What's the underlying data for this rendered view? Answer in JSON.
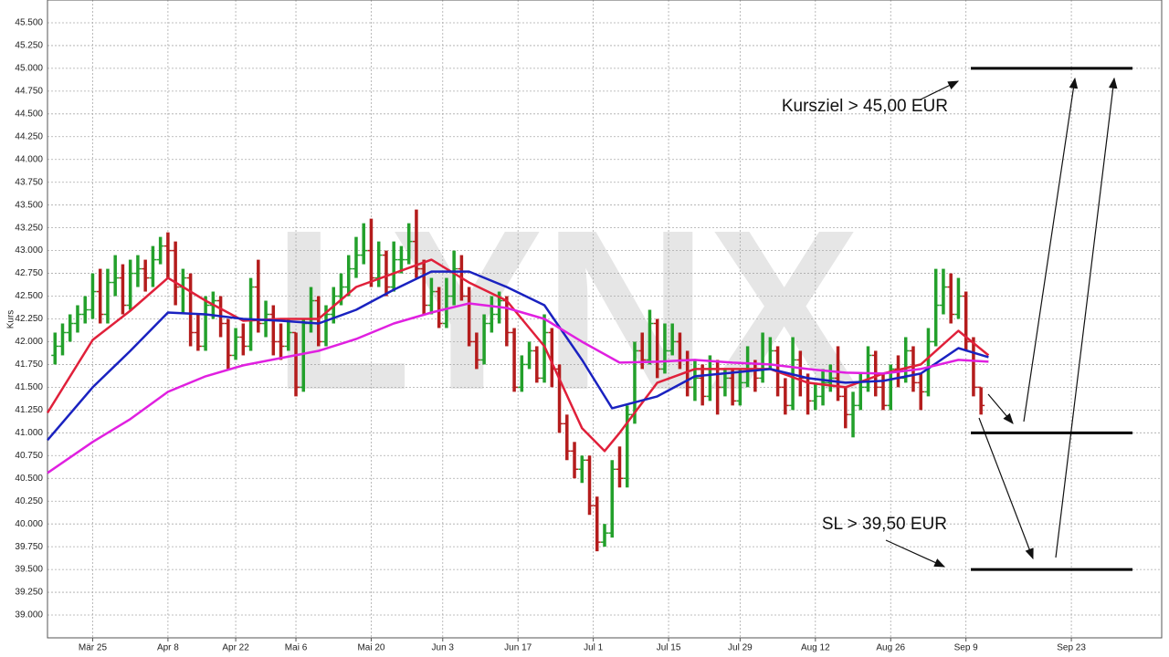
{
  "chart_data": {
    "type": "ohlc",
    "y_label": "Kurs",
    "watermark": "LYNX",
    "grid": true,
    "xlim": [
      0,
      148
    ],
    "ylim": [
      38.75,
      45.75
    ],
    "xticks": [
      {
        "value": 6,
        "label": "Mär 25"
      },
      {
        "value": 16,
        "label": "Apr 8"
      },
      {
        "value": 25,
        "label": "Apr 22"
      },
      {
        "value": 33,
        "label": "Mai 6"
      },
      {
        "value": 43,
        "label": "Mai 20"
      },
      {
        "value": 52.5,
        "label": "Jun 3"
      },
      {
        "value": 62.5,
        "label": "Jun 17"
      },
      {
        "value": 72.5,
        "label": "Jul 1"
      },
      {
        "value": 82.5,
        "label": "Jul 15"
      },
      {
        "value": 92,
        "label": "Jul 29"
      },
      {
        "value": 102,
        "label": "Aug 12"
      },
      {
        "value": 112,
        "label": "Aug 26"
      },
      {
        "value": 122,
        "label": "Sep 9"
      },
      {
        "value": 136,
        "label": "Sep 23"
      }
    ],
    "yticks": [
      {
        "value": 39,
        "label": "39.000"
      },
      {
        "value": 39.25,
        "label": "39.250"
      },
      {
        "value": 39.5,
        "label": "39.500"
      },
      {
        "value": 39.75,
        "label": "39.750"
      },
      {
        "value": 40,
        "label": "40.000"
      },
      {
        "value": 40.25,
        "label": "40.250"
      },
      {
        "value": 40.5,
        "label": "40.500"
      },
      {
        "value": 40.75,
        "label": "40.750"
      },
      {
        "value": 41,
        "label": "41.000"
      },
      {
        "value": 41.25,
        "label": "41.250"
      },
      {
        "value": 41.5,
        "label": "41.500"
      },
      {
        "value": 41.75,
        "label": "41.750"
      },
      {
        "value": 42,
        "label": "42.000"
      },
      {
        "value": 42.25,
        "label": "42.250"
      },
      {
        "value": 42.5,
        "label": "42.500"
      },
      {
        "value": 42.75,
        "label": "42.750"
      },
      {
        "value": 43,
        "label": "43.000"
      },
      {
        "value": 43.25,
        "label": "43.250"
      },
      {
        "value": 43.5,
        "label": "43.500"
      },
      {
        "value": 43.75,
        "label": "43.750"
      },
      {
        "value": 44,
        "label": "44.000"
      },
      {
        "value": 44.25,
        "label": "44.250"
      },
      {
        "value": 44.5,
        "label": "44.500"
      },
      {
        "value": 44.75,
        "label": "44.750"
      },
      {
        "value": 45,
        "label": "45.000"
      },
      {
        "value": 45.25,
        "label": "45.250"
      },
      {
        "value": 45.5,
        "label": "45.500"
      }
    ],
    "up_color": "#23a02b",
    "down_color": "#b41c1c",
    "x": [
      1,
      2,
      3,
      4,
      5,
      6,
      7,
      8,
      9,
      10,
      11,
      12,
      13,
      14,
      15,
      16,
      17,
      18,
      19,
      20,
      21,
      22,
      23,
      24,
      25,
      26,
      27,
      28,
      29,
      30,
      31,
      32,
      33,
      34,
      35,
      36,
      37,
      38,
      39,
      40,
      41,
      42,
      43,
      44,
      45,
      46,
      47,
      48,
      49,
      50,
      51,
      52,
      53,
      54,
      55,
      56,
      57,
      58,
      59,
      60,
      61,
      62,
      63,
      64,
      65,
      66,
      67,
      68,
      69,
      70,
      71,
      72,
      73,
      74,
      75,
      76,
      77,
      78,
      79,
      80,
      81,
      82,
      83,
      84,
      85,
      86,
      87,
      88,
      89,
      90,
      91,
      92,
      93,
      94,
      95,
      96,
      97,
      98,
      99,
      100,
      101,
      102,
      103,
      104,
      105,
      106,
      107,
      108,
      109,
      110,
      111,
      112,
      113,
      114,
      115,
      116,
      117,
      118,
      119,
      120,
      121,
      122,
      123,
      124
    ],
    "open": [
      41.85,
      41.95,
      42.1,
      42.2,
      42.3,
      42.35,
      42.55,
      42.3,
      42.65,
      42.7,
      42.4,
      42.75,
      42.8,
      42.7,
      42.9,
      43.05,
      43.0,
      42.6,
      42.7,
      42.1,
      41.95,
      42.4,
      42.45,
      42.2,
      41.85,
      42.05,
      41.95,
      42.6,
      42.2,
      42.3,
      42.0,
      41.95,
      42.1,
      41.5,
      42.2,
      42.45,
      42.0,
      42.3,
      42.5,
      42.6,
      42.8,
      42.95,
      43.0,
      42.7,
      42.95,
      42.6,
      42.9,
      42.9,
      43.1,
      42.8,
      42.4,
      42.55,
      42.2,
      42.5,
      42.8,
      42.5,
      42.0,
      41.8,
      42.2,
      42.3,
      42.45,
      42.1,
      41.5,
      41.75,
      41.9,
      41.6,
      42.1,
      41.7,
      41.1,
      40.8,
      40.6,
      40.7,
      40.2,
      39.8,
      39.9,
      40.6,
      40.5,
      41.2,
      41.9,
      41.8,
      42.2,
      41.7,
      41.9,
      42.0,
      41.8,
      41.5,
      41.6,
      41.4,
      41.7,
      41.5,
      41.6,
      41.35,
      41.55,
      41.7,
      41.6,
      41.75,
      41.9,
      41.5,
      41.3,
      41.8,
      41.6,
      41.35,
      41.4,
      41.55,
      41.6,
      41.4,
      41.2,
      41.3,
      41.5,
      41.85,
      41.5,
      41.3,
      41.7,
      41.6,
      41.9,
      41.55,
      41.45,
      42.0,
      42.4,
      42.6,
      42.3,
      42.5,
      42.0,
      41.5
    ],
    "high": [
      42.1,
      42.2,
      42.3,
      42.4,
      42.5,
      42.75,
      42.8,
      42.8,
      42.95,
      42.85,
      42.9,
      42.95,
      42.9,
      43.05,
      43.15,
      43.2,
      43.1,
      42.8,
      42.75,
      42.3,
      42.5,
      42.55,
      42.5,
      42.25,
      42.15,
      42.2,
      42.7,
      42.9,
      42.45,
      42.4,
      42.2,
      42.25,
      42.1,
      42.25,
      42.6,
      42.5,
      42.4,
      42.6,
      42.75,
      42.95,
      43.15,
      43.3,
      43.35,
      43.1,
      43.0,
      43.1,
      43.05,
      43.3,
      43.45,
      42.9,
      42.7,
      42.6,
      42.7,
      43.0,
      42.95,
      42.6,
      42.1,
      42.3,
      42.5,
      42.55,
      42.5,
      42.15,
      41.85,
      42.0,
      41.95,
      42.3,
      42.15,
      41.75,
      41.2,
      40.9,
      40.75,
      40.75,
      40.3,
      40.0,
      40.7,
      40.85,
      41.3,
      42.0,
      42.1,
      42.35,
      42.25,
      42.2,
      42.2,
      42.1,
      41.9,
      41.8,
      41.75,
      41.85,
      41.8,
      41.7,
      41.7,
      41.7,
      41.95,
      41.8,
      42.1,
      42.05,
      41.95,
      41.6,
      42.05,
      41.9,
      41.65,
      41.55,
      41.7,
      41.75,
      41.95,
      41.5,
      41.45,
      41.65,
      41.95,
      41.9,
      41.65,
      41.75,
      41.85,
      42.05,
      41.95,
      41.65,
      42.15,
      42.8,
      42.8,
      42.75,
      42.7,
      42.55,
      42.05,
      41.5
    ],
    "low": [
      41.75,
      41.85,
      42.0,
      42.1,
      42.2,
      42.25,
      42.2,
      42.2,
      42.5,
      42.3,
      42.35,
      42.6,
      42.55,
      42.6,
      42.85,
      42.7,
      42.4,
      42.3,
      41.95,
      41.9,
      41.9,
      42.25,
      42.05,
      41.7,
      41.8,
      41.85,
      41.9,
      42.1,
      42.05,
      41.85,
      41.8,
      41.9,
      41.4,
      41.45,
      42.1,
      41.95,
      41.95,
      42.2,
      42.4,
      42.5,
      42.7,
      42.85,
      42.6,
      42.6,
      42.5,
      42.55,
      42.75,
      42.85,
      42.7,
      42.3,
      42.3,
      42.15,
      42.15,
      42.4,
      42.45,
      41.95,
      41.7,
      41.75,
      42.1,
      42.2,
      41.95,
      41.45,
      41.45,
      41.7,
      41.55,
      41.55,
      41.5,
      41.0,
      40.7,
      40.5,
      40.45,
      40.1,
      39.7,
      39.75,
      39.85,
      40.4,
      40.4,
      41.1,
      41.7,
      41.75,
      41.6,
      41.65,
      41.85,
      41.7,
      41.4,
      41.35,
      41.3,
      41.35,
      41.2,
      41.4,
      41.3,
      41.3,
      41.5,
      41.45,
      41.55,
      41.7,
      41.4,
      41.2,
      41.25,
      41.4,
      41.2,
      41.25,
      41.3,
      41.45,
      41.35,
      41.05,
      40.95,
      41.25,
      41.45,
      41.4,
      41.25,
      41.25,
      41.5,
      41.55,
      41.45,
      41.25,
      41.4,
      41.95,
      42.3,
      42.2,
      42.25,
      41.9,
      41.4,
      41.2
    ],
    "close": [
      41.95,
      42.1,
      42.2,
      42.3,
      42.35,
      42.55,
      42.3,
      42.65,
      42.7,
      42.4,
      42.75,
      42.8,
      42.7,
      42.9,
      43.05,
      43.0,
      42.6,
      42.7,
      42.1,
      41.95,
      42.4,
      42.45,
      42.2,
      41.85,
      42.05,
      41.95,
      42.6,
      42.2,
      42.3,
      42.0,
      41.95,
      42.1,
      41.5,
      42.2,
      42.45,
      42.0,
      42.3,
      42.5,
      42.6,
      42.8,
      42.95,
      43.0,
      42.7,
      42.95,
      42.6,
      42.9,
      42.9,
      43.1,
      42.8,
      42.4,
      42.55,
      42.2,
      42.5,
      42.8,
      42.5,
      42.0,
      41.8,
      42.2,
      42.3,
      42.45,
      42.1,
      41.5,
      41.75,
      41.9,
      41.6,
      42.1,
      41.7,
      41.1,
      40.8,
      40.6,
      40.7,
      40.2,
      39.8,
      39.9,
      40.6,
      40.5,
      41.2,
      41.9,
      41.8,
      42.2,
      41.7,
      41.9,
      42.0,
      41.8,
      41.5,
      41.6,
      41.4,
      41.7,
      41.5,
      41.6,
      41.35,
      41.55,
      41.7,
      41.6,
      41.75,
      41.9,
      41.5,
      41.3,
      41.8,
      41.6,
      41.35,
      41.4,
      41.55,
      41.6,
      41.4,
      41.2,
      41.3,
      41.5,
      41.85,
      41.5,
      41.3,
      41.7,
      41.6,
      41.9,
      41.55,
      41.45,
      42.0,
      42.4,
      42.6,
      42.3,
      42.5,
      42.0,
      41.5,
      41.3
    ],
    "lines": [
      {
        "color": "#e0203a",
        "x": [
          0,
          6,
          11,
          16,
          21,
          26,
          31,
          36,
          41,
          46,
          51,
          56,
          61,
          66,
          71,
          74,
          76,
          81,
          86,
          91,
          96,
          101,
          106,
          111,
          116,
          121,
          125
        ],
        "values": [
          41.22,
          42.02,
          42.34,
          42.7,
          42.45,
          42.23,
          42.25,
          42.25,
          42.6,
          42.75,
          42.9,
          42.65,
          42.45,
          41.95,
          41.05,
          40.8,
          41.0,
          41.55,
          41.7,
          41.7,
          41.7,
          41.55,
          41.5,
          41.65,
          41.75,
          42.12,
          41.85
        ]
      },
      {
        "color": "#1a22c0",
        "x": [
          0,
          6,
          11,
          16,
          21,
          26,
          31,
          36,
          41,
          46,
          51,
          56,
          61,
          66,
          71,
          75,
          81,
          86,
          91,
          96,
          101,
          106,
          111,
          116,
          121,
          125
        ],
        "values": [
          40.92,
          41.5,
          41.9,
          42.32,
          42.3,
          42.25,
          42.23,
          42.2,
          42.35,
          42.57,
          42.77,
          42.77,
          42.6,
          42.4,
          41.8,
          41.27,
          41.4,
          41.62,
          41.66,
          41.7,
          41.6,
          41.55,
          41.57,
          41.65,
          41.93,
          41.83
        ]
      },
      {
        "color": "#e020e0",
        "x": [
          0,
          6,
          11,
          16,
          21,
          26,
          31,
          36,
          41,
          46,
          51,
          56,
          61,
          66,
          71,
          76,
          81,
          86,
          91,
          96,
          101,
          106,
          111,
          116,
          121,
          125
        ],
        "values": [
          40.56,
          40.9,
          41.15,
          41.45,
          41.62,
          41.74,
          41.82,
          41.9,
          42.03,
          42.2,
          42.32,
          42.42,
          42.37,
          42.25,
          42.0,
          41.77,
          41.78,
          41.8,
          41.77,
          41.75,
          41.7,
          41.66,
          41.65,
          41.7,
          41.8,
          41.78
        ]
      }
    ],
    "levels": [
      45,
      41,
      39.5
    ],
    "annotations": [
      "Kursziel > 45,00 EUR",
      "SL > 39,50 EUR"
    ]
  }
}
